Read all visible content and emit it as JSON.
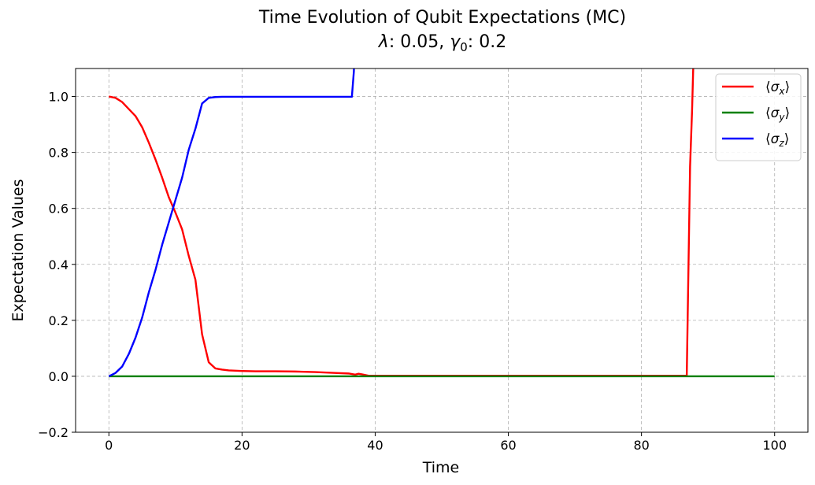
{
  "chart_data": {
    "type": "line",
    "title_line1": "Time Evolution of Qubit Expectations (MC)",
    "title_line2": {
      "lambda_symbol": "λ",
      "lambda_value": ": 0.05, ",
      "gamma_symbol": "γ",
      "gamma_sub": "0",
      "gamma_value": ": 0.2"
    },
    "xlabel": "Time",
    "ylabel": "Expectation Values",
    "xlim": [
      -5,
      105
    ],
    "ylim": [
      -0.2,
      1.1
    ],
    "xticks": [
      0,
      20,
      40,
      60,
      80,
      100
    ],
    "yticks": [
      -0.2,
      0.0,
      0.2,
      0.4,
      0.6,
      0.8,
      1.0
    ],
    "xtick_labels": [
      "0",
      "20",
      "40",
      "60",
      "80",
      "100"
    ],
    "ytick_labels": [
      "−0.2",
      "0.0",
      "0.2",
      "0.4",
      "0.6",
      "0.8",
      "1.0"
    ],
    "grid": true,
    "legend_position": "top-right",
    "series": [
      {
        "name": "⟨σx⟩",
        "legend": {
          "open": "⟨",
          "sym": "σ",
          "sub": "x",
          "close": "⟩"
        },
        "color": "#ff0000",
        "x": [
          0,
          1,
          2,
          3,
          4,
          5,
          6,
          7,
          8,
          9,
          10,
          11,
          12,
          13,
          14,
          15,
          16,
          17,
          18,
          20,
          22,
          25,
          28,
          31,
          34,
          36,
          37,
          37.5,
          38,
          39,
          45,
          55,
          65,
          75,
          85,
          86.8,
          87.3,
          87.6,
          88
        ],
        "values": [
          1.0,
          0.995,
          0.98,
          0.955,
          0.93,
          0.89,
          0.835,
          0.775,
          0.71,
          0.64,
          0.585,
          0.525,
          0.43,
          0.345,
          0.15,
          0.05,
          0.028,
          0.024,
          0.021,
          0.019,
          0.018,
          0.018,
          0.017,
          0.015,
          0.012,
          0.01,
          0.006,
          0.009,
          0.007,
          0.002,
          0.002,
          0.002,
          0.002,
          0.002,
          0.002,
          0.002,
          0.75,
          0.95,
          1.3
        ]
      },
      {
        "name": "⟨σy⟩",
        "legend": {
          "open": "⟨",
          "sym": "σ",
          "sub": "y",
          "close": "⟩"
        },
        "color": "#008000",
        "x": [
          0,
          100
        ],
        "values": [
          0.0,
          0.0
        ]
      },
      {
        "name": "⟨σz⟩",
        "legend": {
          "open": "⟨",
          "sym": "σ",
          "sub": "z",
          "close": "⟩"
        },
        "color": "#0000ff",
        "x": [
          0,
          1,
          2,
          3,
          4,
          5,
          6,
          7,
          8,
          9,
          10,
          11,
          12,
          13,
          14,
          15,
          16,
          17,
          20,
          25,
          30,
          36.5,
          36.8,
          37
        ],
        "values": [
          0.0,
          0.012,
          0.035,
          0.08,
          0.138,
          0.21,
          0.3,
          0.38,
          0.47,
          0.55,
          0.63,
          0.71,
          0.81,
          0.885,
          0.975,
          0.995,
          0.998,
          0.999,
          0.999,
          0.999,
          0.999,
          0.999,
          1.09,
          1.3
        ]
      }
    ]
  }
}
